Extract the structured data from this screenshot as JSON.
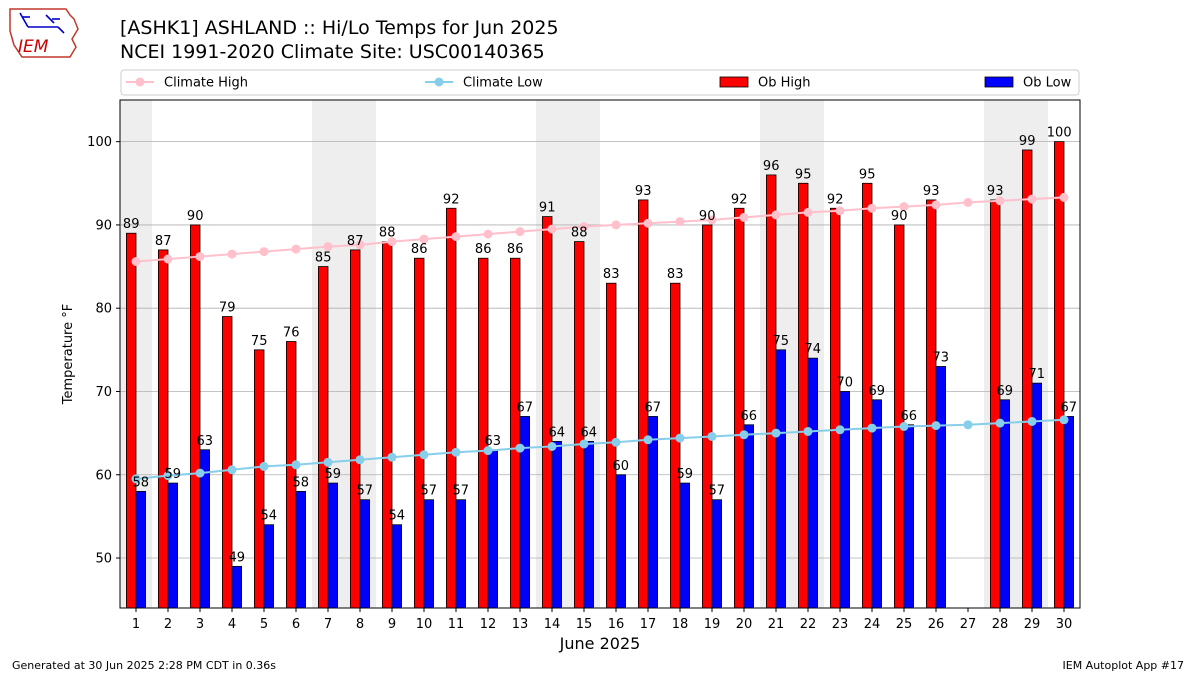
{
  "header": {
    "logo_text": "IEM",
    "title_line1": "[ASHK1] ASHLAND :: Hi/Lo Temps for Jun 2025",
    "title_line2": "NCEI 1991-2020 Climate Site: USC00140365"
  },
  "footer": {
    "generated": "Generated at 30 Jun 2025 2:28 PM CDT in 0.36s",
    "app": "IEM Autoplot App #17"
  },
  "colors": {
    "ob_high": "#ff0000",
    "ob_low": "#0000ff",
    "climate_high": "#ffc0cb",
    "climate_low": "#87ceeb",
    "weekend_shade": "#eeeeee",
    "grid": "#b0b0b0"
  },
  "chart_data": {
    "type": "bar",
    "title": "[ASHK1] ASHLAND :: Hi/Lo Temps for Jun 2025",
    "xlabel": "June 2025",
    "ylabel": "Temperature °F",
    "ylim": [
      44,
      105
    ],
    "yticks": [
      50,
      60,
      70,
      80,
      90,
      100
    ],
    "grid": "y",
    "legend_position": "top",
    "categories": [
      "1",
      "2",
      "3",
      "4",
      "5",
      "6",
      "7",
      "8",
      "9",
      "10",
      "11",
      "12",
      "13",
      "14",
      "15",
      "16",
      "17",
      "18",
      "19",
      "20",
      "21",
      "22",
      "23",
      "24",
      "25",
      "26",
      "27",
      "28",
      "29",
      "30"
    ],
    "weekend_days": [
      1,
      7,
      8,
      14,
      15,
      21,
      22,
      28,
      29
    ],
    "series": [
      {
        "name": "Ob High",
        "kind": "bar",
        "values": [
          89,
          87,
          90,
          79,
          75,
          76,
          85,
          87,
          88,
          86,
          92,
          86,
          86,
          91,
          88,
          83,
          93,
          83,
          90,
          92,
          96,
          95,
          92,
          95,
          90,
          93,
          null,
          93,
          99,
          100
        ]
      },
      {
        "name": "Ob Low",
        "kind": "bar",
        "values": [
          58,
          59,
          63,
          49,
          54,
          58,
          59,
          57,
          54,
          57,
          57,
          63,
          67,
          64,
          64,
          60,
          67,
          59,
          57,
          66,
          75,
          74,
          70,
          69,
          66,
          73,
          null,
          69,
          71,
          67
        ]
      },
      {
        "name": "Climate High",
        "kind": "line",
        "values": [
          85.6,
          85.9,
          86.2,
          86.5,
          86.8,
          87.1,
          87.4,
          87.6,
          88.0,
          88.3,
          88.6,
          88.9,
          89.2,
          89.5,
          89.8,
          90.0,
          90.2,
          90.4,
          90.6,
          90.9,
          91.2,
          91.5,
          91.7,
          92.0,
          92.2,
          92.4,
          92.7,
          92.9,
          93.1,
          93.3
        ]
      },
      {
        "name": "Climate Low",
        "kind": "line",
        "values": [
          59.5,
          59.9,
          60.2,
          60.6,
          61.0,
          61.2,
          61.5,
          61.8,
          62.1,
          62.4,
          62.7,
          62.9,
          63.2,
          63.4,
          63.7,
          63.9,
          64.2,
          64.4,
          64.6,
          64.8,
          65.0,
          65.2,
          65.4,
          65.6,
          65.8,
          65.9,
          66.0,
          66.2,
          66.4,
          66.6
        ]
      }
    ]
  }
}
